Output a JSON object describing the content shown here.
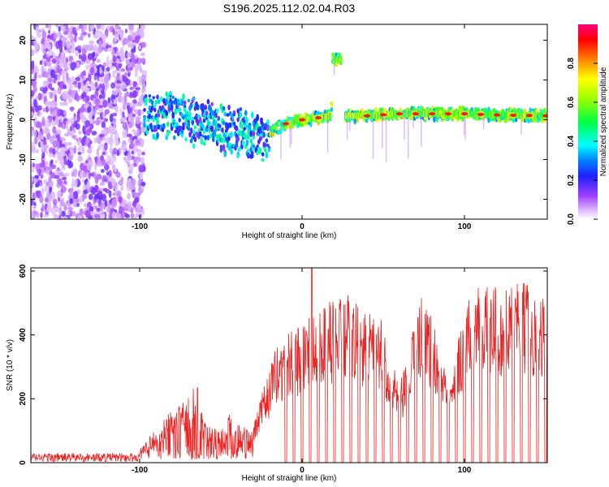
{
  "chart_data": [
    {
      "type": "heatmap",
      "title": "S196.2025.112.02.04.R03",
      "xlabel": "Height of straight line (km)",
      "ylabel": "Frequency (Hz)",
      "xlim": [
        -167,
        151
      ],
      "ylim": [
        -25,
        24
      ],
      "xticks": [
        -100,
        0,
        100
      ],
      "yticks": [
        -20,
        -10,
        0,
        10,
        20
      ],
      "grid": false,
      "colorbar": {
        "label": "Normalized spectral amplitude",
        "range": [
          0,
          1
        ],
        "ticks": [
          0.0,
          0.2,
          0.4,
          0.6,
          0.8
        ],
        "tick_labels": [
          "0.0",
          "0.2",
          "0.4",
          "0.6",
          "0.8"
        ],
        "colormap": [
          "#ffffff",
          "#cc99ff",
          "#8000ff",
          "#0000ff",
          "#00ffff",
          "#00ff00",
          "#ffff00",
          "#ff8000",
          "#ff0000",
          "#ff0080"
        ]
      },
      "ridge": {
        "x": [
          -95,
          -80,
          -60,
          -40,
          -25,
          -20,
          -10,
          0,
          10,
          18,
          19,
          25,
          26,
          40,
          60,
          80,
          100,
          120,
          151
        ],
        "y": [
          1,
          1,
          -1,
          -3,
          -5,
          -3,
          -1,
          0,
          0.5,
          1,
          15,
          15,
          1,
          1,
          1.5,
          1.5,
          1.5,
          1.2,
          1
        ]
      },
      "gap_x": [
        19,
        26
      ],
      "noise_region_x": [
        -167,
        -97
      ]
    },
    {
      "type": "line",
      "xlabel": "Height of straight line (km)",
      "ylabel": "SNR (10 * v/v)",
      "xlim": [
        -167,
        151
      ],
      "ylim": [
        0,
        610
      ],
      "xticks": [
        -100,
        0,
        100
      ],
      "yticks": [
        0,
        200,
        400,
        600
      ],
      "color": "#ee2222",
      "grid": false,
      "series": [
        {
          "x": [
            -167,
            -150,
            -120,
            -100,
            -90,
            -80,
            -70,
            -65,
            -60,
            -50,
            -45,
            -40,
            -30,
            -25,
            -20,
            -15,
            -10,
            -5,
            0,
            5,
            10,
            15,
            20,
            30,
            40,
            50,
            55,
            60,
            65,
            70,
            75,
            80,
            85,
            90,
            95,
            100,
            105,
            110,
            120,
            130,
            140,
            151
          ],
          "values": [
            15,
            15,
            18,
            40,
            100,
            160,
            200,
            240,
            120,
            100,
            150,
            120,
            110,
            200,
            280,
            360,
            380,
            400,
            420,
            470,
            500,
            480,
            490,
            500,
            450,
            420,
            300,
            240,
            300,
            450,
            530,
            430,
            350,
            300,
            380,
            450,
            530,
            550,
            520,
            530,
            540,
            500
          ]
        }
      ],
      "dropouts_x": [
        -10,
        -5,
        0,
        5,
        10,
        15,
        20,
        25,
        30,
        35,
        40,
        45,
        50,
        55,
        60,
        65,
        70,
        75,
        80,
        85,
        90,
        95,
        100,
        105,
        110,
        115,
        120,
        125,
        130,
        135,
        140,
        145,
        150
      ],
      "spikes": [
        {
          "x": 6,
          "y": 610
        }
      ]
    }
  ]
}
